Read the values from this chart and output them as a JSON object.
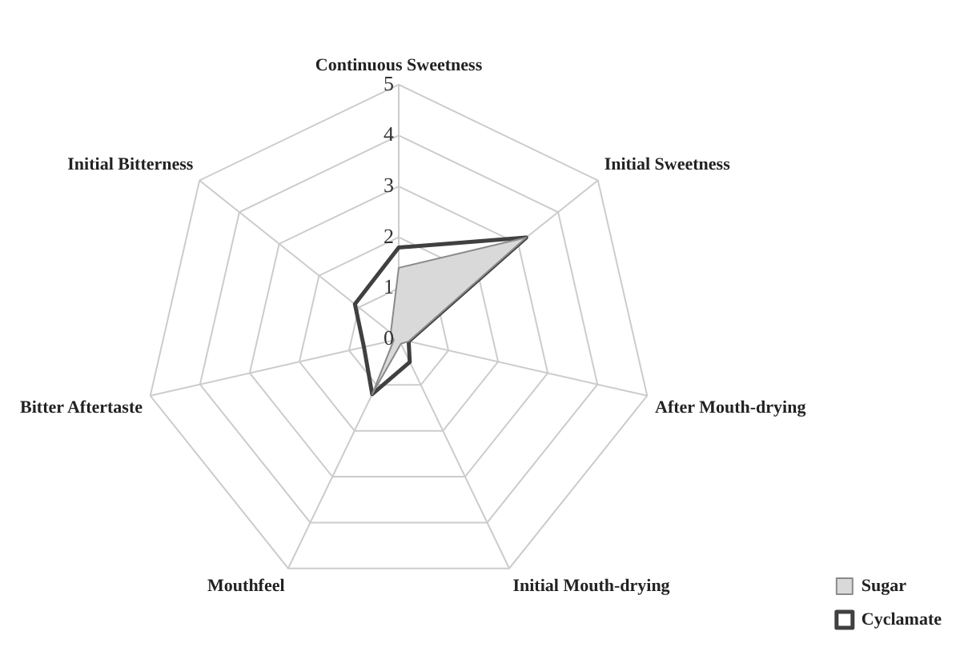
{
  "chart_data": {
    "type": "radar",
    "categories": [
      "Continuous Sweetness",
      "Initial Sweetness",
      "After Mouth-drying",
      "Initial Mouth-drying",
      "Mouthfeel",
      "Bitter Aftertaste",
      "Initial Bitterness"
    ],
    "series": [
      {
        "name": "Sugar",
        "color": "#d9d9d9",
        "values": [
          1.4,
          3.2,
          0.2,
          0.1,
          1.2,
          0.1,
          0.2
        ]
      },
      {
        "name": "Cyclamate",
        "color": "#404040",
        "values": [
          1.8,
          3.2,
          0.2,
          0.5,
          1.2,
          0.7,
          1.1
        ]
      }
    ],
    "ylim": [
      0,
      5
    ],
    "yticks": [
      0,
      1,
      2,
      3,
      4,
      5
    ],
    "grid": true,
    "legend": "bottom right",
    "marker": "none"
  }
}
